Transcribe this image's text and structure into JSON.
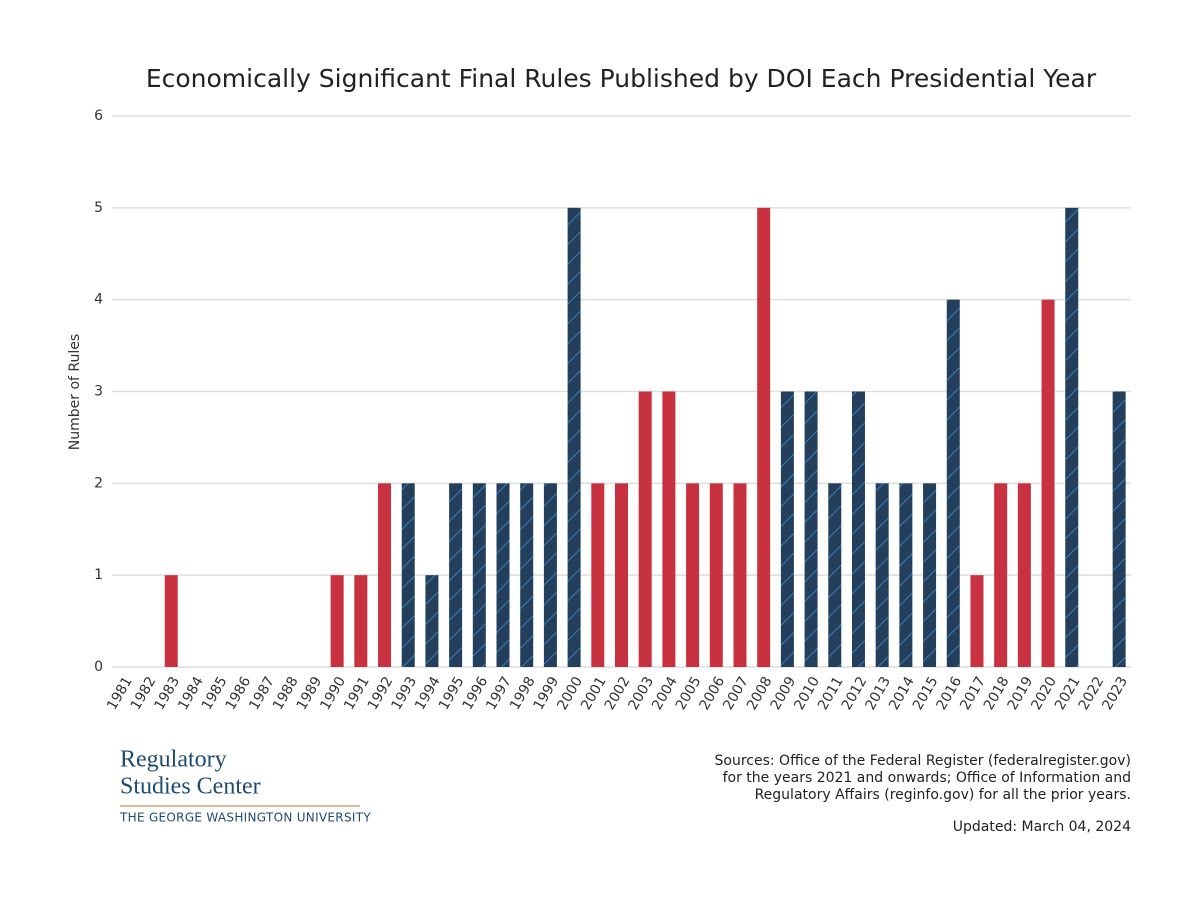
{
  "chart_data": {
    "type": "bar",
    "title": "Economically Significant Final Rules Published by DOI Each Presidential Year",
    "y_label": "Number of Rules",
    "categories": [
      "1981",
      "1982",
      "1983",
      "1984",
      "1985",
      "1986",
      "1987",
      "1988",
      "1989",
      "1990",
      "1991",
      "1992",
      "1993",
      "1994",
      "1995",
      "1996",
      "1997",
      "1998",
      "1999",
      "2000",
      "2001",
      "2002",
      "2003",
      "2004",
      "2005",
      "2006",
      "2007",
      "2008",
      "2009",
      "2010",
      "2011",
      "2012",
      "2013",
      "2014",
      "2015",
      "2016",
      "2017",
      "2018",
      "2019",
      "2020",
      "2021",
      "2022",
      "2023"
    ],
    "values": [
      0,
      0,
      1,
      0,
      0,
      0,
      0,
      0,
      0,
      1,
      1,
      2,
      2,
      1,
      2,
      2,
      2,
      2,
      2,
      5,
      2,
      2,
      3,
      3,
      2,
      2,
      2,
      5,
      3,
      3,
      2,
      3,
      2,
      2,
      2,
      4,
      1,
      2,
      2,
      4,
      5,
      0,
      3
    ],
    "colors": [
      "#c8313f",
      "#c8313f",
      "#c8313f",
      "#c8313f",
      "#c8313f",
      "#c8313f",
      "#c8313f",
      "#c8313f",
      "#c8313f",
      "#c8313f",
      "#c8313f",
      "#c8313f",
      "#233f5c",
      "#233f5c",
      "#233f5c",
      "#233f5c",
      "#233f5c",
      "#233f5c",
      "#233f5c",
      "#233f5c",
      "#c8313f",
      "#c8313f",
      "#c8313f",
      "#c8313f",
      "#c8313f",
      "#c8313f",
      "#c8313f",
      "#c8313f",
      "#233f5c",
      "#233f5c",
      "#233f5c",
      "#233f5c",
      "#233f5c",
      "#233f5c",
      "#233f5c",
      "#233f5c",
      "#c8313f",
      "#c8313f",
      "#c8313f",
      "#c8313f",
      "#233f5c",
      "#233f5c",
      "#233f5c"
    ],
    "hatched": [
      false,
      false,
      false,
      false,
      false,
      false,
      false,
      false,
      false,
      false,
      false,
      false,
      true,
      true,
      true,
      true,
      true,
      true,
      true,
      true,
      false,
      false,
      false,
      false,
      false,
      false,
      false,
      false,
      true,
      true,
      true,
      true,
      true,
      true,
      true,
      true,
      false,
      false,
      false,
      false,
      true,
      true,
      true
    ],
    "hatch_color": "#3f8fd3",
    "ylim": [
      0,
      6
    ],
    "yticks": [
      0,
      1,
      2,
      3,
      4,
      5,
      6
    ],
    "grid": true
  },
  "footer": {
    "logo": [
      "Regulatory",
      "Studies Center"
    ],
    "logo_subtitle": "THE GEORGE WASHINGTON UNIVERSITY",
    "sources": [
      "Sources: Office of the Federal Register (federalregister.gov)",
      "for the years 2021 and onwards; Office of Information and",
      "Regulatory Affairs (reginfo.gov) for all the prior years."
    ],
    "updated": "Updated: March 04, 2024"
  }
}
